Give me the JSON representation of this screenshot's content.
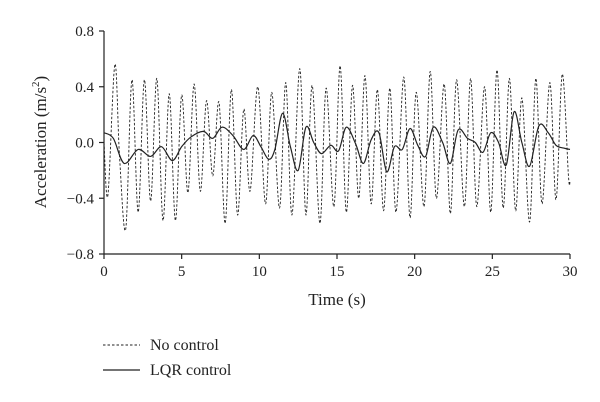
{
  "chart_data": {
    "type": "line",
    "xlabel": "Time (s)",
    "ylabel": "Acceleration (m/s",
    "ylabel_superscript": "2",
    "ylabel_suffix": ")",
    "xlim": [
      0,
      30
    ],
    "ylim": [
      -0.8,
      0.8
    ],
    "x_ticks": [
      0,
      5,
      10,
      15,
      20,
      25,
      30
    ],
    "x_tick_labels": [
      "0",
      "5",
      "10",
      "15",
      "20",
      "25",
      "30"
    ],
    "y_ticks": [
      0.8,
      0.4,
      0.0,
      -0.4,
      -0.8
    ],
    "y_tick_labels": [
      "0.8",
      "0.4",
      "0.0",
      "−0.4",
      "−0.8"
    ],
    "grid": false,
    "legend_position": "bottom-left",
    "series": [
      {
        "name": "No control",
        "style": "dashed",
        "x": [
          0.0,
          0.25,
          0.7,
          1.0,
          1.4,
          1.8,
          2.2,
          2.6,
          3.0,
          3.4,
          3.8,
          4.2,
          4.6,
          5.0,
          5.4,
          5.8,
          6.2,
          6.6,
          7.0,
          7.4,
          7.8,
          8.2,
          8.6,
          9.0,
          9.4,
          9.9,
          10.4,
          10.8,
          11.3,
          11.7,
          12.1,
          12.6,
          13.0,
          13.4,
          13.9,
          14.3,
          14.8,
          15.2,
          15.6,
          16.0,
          16.4,
          16.8,
          17.2,
          17.6,
          18.0,
          18.4,
          18.8,
          19.3,
          19.7,
          20.1,
          20.6,
          21.0,
          21.4,
          21.9,
          22.3,
          22.7,
          23.2,
          23.6,
          24.0,
          24.5,
          24.9,
          25.3,
          25.7,
          26.1,
          26.5,
          26.9,
          27.4,
          27.8,
          28.2,
          28.7,
          29.1,
          29.5,
          29.9,
          30.0
        ],
        "y": [
          0.0,
          -0.38,
          0.56,
          -0.1,
          -0.62,
          0.45,
          -0.5,
          0.45,
          -0.42,
          0.46,
          -0.56,
          0.35,
          -0.56,
          0.34,
          -0.36,
          0.42,
          -0.35,
          0.3,
          -0.24,
          0.29,
          -0.58,
          0.38,
          -0.52,
          0.24,
          -0.35,
          0.4,
          -0.44,
          0.36,
          -0.47,
          0.43,
          -0.52,
          0.53,
          -0.52,
          0.41,
          -0.58,
          0.39,
          -0.46,
          0.55,
          -0.5,
          0.41,
          -0.4,
          0.48,
          -0.44,
          0.38,
          -0.49,
          0.39,
          -0.5,
          0.47,
          -0.54,
          0.36,
          -0.46,
          0.51,
          -0.4,
          0.42,
          -0.51,
          0.45,
          -0.46,
          0.46,
          -0.46,
          0.4,
          -0.5,
          0.52,
          -0.47,
          0.46,
          -0.49,
          0.32,
          -0.57,
          0.46,
          -0.44,
          0.43,
          -0.41,
          0.49,
          -0.24,
          -0.28
        ]
      },
      {
        "name": "LQR control",
        "style": "solid",
        "x": [
          0.0,
          0.6,
          1.3,
          2.2,
          3.0,
          3.7,
          4.4,
          5.0,
          5.6,
          6.4,
          7.0,
          7.6,
          8.3,
          9.0,
          9.6,
          10.1,
          10.6,
          11.0,
          11.5,
          12.0,
          12.5,
          13.0,
          13.5,
          14.0,
          14.6,
          15.1,
          15.6,
          16.2,
          16.7,
          17.2,
          17.7,
          18.2,
          18.7,
          19.2,
          19.7,
          20.2,
          20.7,
          21.2,
          21.8,
          22.3,
          22.8,
          23.4,
          23.9,
          24.4,
          24.9,
          25.4,
          25.9,
          26.4,
          26.9,
          27.4,
          28.0,
          28.6,
          29.1,
          29.6,
          30.0
        ],
        "y": [
          0.07,
          0.03,
          -0.15,
          -0.05,
          -0.1,
          -0.03,
          -0.13,
          -0.03,
          0.04,
          0.08,
          0.03,
          0.11,
          0.05,
          -0.05,
          0.05,
          -0.03,
          -0.12,
          -0.05,
          0.21,
          -0.03,
          -0.2,
          0.11,
          0.0,
          -0.08,
          -0.02,
          -0.06,
          0.11,
          -0.01,
          -0.15,
          0.02,
          0.07,
          -0.21,
          -0.03,
          -0.05,
          0.1,
          -0.02,
          -0.1,
          0.11,
          0.0,
          -0.15,
          0.09,
          0.03,
          0.0,
          -0.07,
          0.07,
          0.0,
          -0.16,
          0.22,
          0.0,
          -0.17,
          0.12,
          0.07,
          -0.02,
          -0.04,
          -0.05
        ]
      }
    ]
  }
}
